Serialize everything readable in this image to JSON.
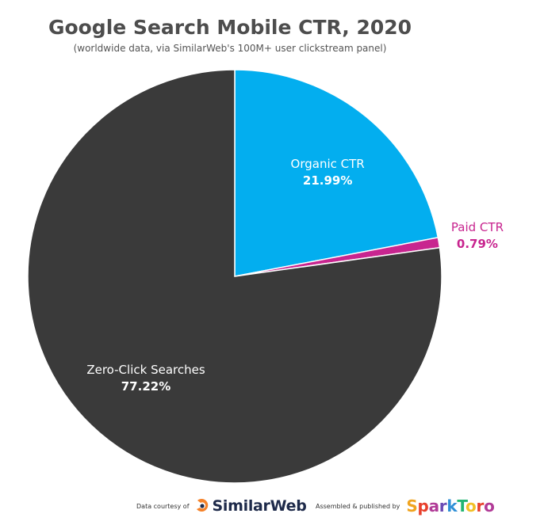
{
  "chart_data": {
    "type": "pie",
    "title": "Google Search Mobile CTR, 2020",
    "subtitle": "(worldwide data, via SimilarWeb's 100M+ user clickstream panel)",
    "slices": [
      {
        "name": "Organic CTR",
        "label": "Organic CTR",
        "value_label": "21.99%",
        "value": 21.99,
        "color": "#03aeef",
        "label_color": "#ffffff"
      },
      {
        "name": "Paid CTR",
        "label": "Paid CTR",
        "value_label": "0.79%",
        "value": 0.79,
        "color": "#c8258f",
        "label_color": "#c8258f"
      },
      {
        "name": "Zero-Click Searches",
        "label": "Zero-Click Searches",
        "value_label": "77.22%",
        "value": 77.22,
        "color": "#3a3a3a",
        "label_color": "#ffffff"
      }
    ],
    "start_angle": "12 o'clock",
    "direction": "clockwise"
  },
  "footer": {
    "data_courtesy": "Data courtesy of",
    "similarweb": "SimilarWeb",
    "assembled": "Assembled & published by",
    "sparktoro": "SparkToro"
  },
  "colors": {
    "title": "#4d4d4d",
    "similarweb_orange": "#f5822a",
    "similarweb_navy": "#1e2a4a",
    "sparktoro_letters": [
      "#f0a41f",
      "#e8402c",
      "#b13b97",
      "#6a4bb5",
      "#2f8fd6",
      "#22b573",
      "#f2c027",
      "#e8402c",
      "#b13b97"
    ]
  }
}
